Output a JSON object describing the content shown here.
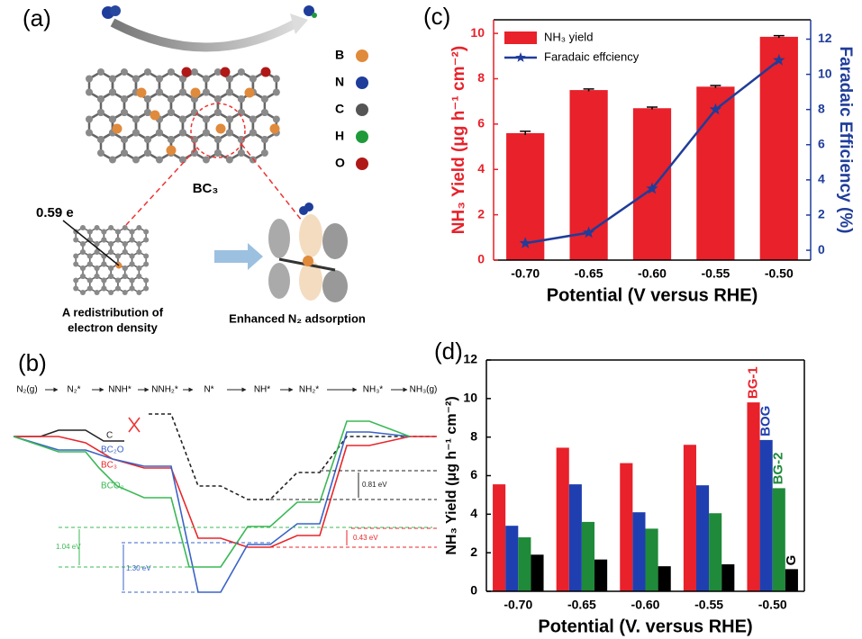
{
  "panel_a": {
    "label": "(a)",
    "elements": [
      "B",
      "N",
      "C",
      "H",
      "O"
    ],
    "element_colors": [
      "#e08a3c",
      "#1f3d9a",
      "#555555",
      "#1f9a3a",
      "#b01818"
    ],
    "structure": "BC₃",
    "charge": "0.59 e",
    "caption_left": [
      "A redistribution of",
      "electron density"
    ],
    "caption_right": "Enhanced N₂ adsorption"
  },
  "panel_b": {
    "label": "(b)",
    "steps": [
      "N₂(g)",
      "N₂*",
      "NNH*",
      "NNH₂*",
      "N*",
      "NH*",
      "NH₂*",
      "NH₃*",
      "NH₃(g)"
    ],
    "curves": [
      "C",
      "BC₂O",
      "BC₃",
      "BCO₂"
    ],
    "curve_colors": [
      "#222222",
      "#3a63c8",
      "#e8262a",
      "#3ab855"
    ],
    "gaps": [
      "0.81 eV",
      "0.43 eV",
      "1.04 eV",
      "1.30 eV"
    ]
  },
  "chart_data": [
    {
      "type": "bar",
      "panel_label": "(c)",
      "categories": [
        "-0.70",
        "-0.65",
        "-0.60",
        "-0.55",
        "-0.50"
      ],
      "xlabel": "Potential (V versus RHE)",
      "ylabel": "NH₃ Yield (μg h⁻¹ cm⁻²)",
      "y2label": "Faradaic Efficiency (%)",
      "ylim": [
        0,
        10.6
      ],
      "yticks": [
        0,
        2,
        4,
        6,
        8,
        10
      ],
      "y2lim": [
        -0.56,
        13.1
      ],
      "y2ticks": [
        0,
        2,
        4,
        6,
        8,
        10,
        12
      ],
      "ycolor": "#e8212a",
      "y2color": "#1f3d9a",
      "legend": "upper left",
      "series": [
        {
          "name": "NH₃ yield",
          "color": "#e8212a",
          "values": [
            5.6,
            7.5,
            6.7,
            7.65,
            9.85
          ],
          "errors": [
            0.08,
            0.05,
            0.05,
            0.05,
            0.05
          ]
        },
        {
          "name": "Faradaic effciency",
          "color": "#1f3d9a",
          "type": "line",
          "axis": "y2",
          "values": [
            0.4,
            1.0,
            3.5,
            8.0,
            10.8
          ]
        }
      ]
    },
    {
      "type": "bar",
      "panel_label": "(d)",
      "categories": [
        "-0.70",
        "-0.65",
        "-0.60",
        "-0.55",
        "-0.50"
      ],
      "xlabel": "Potential (V. versus RHE)",
      "ylabel": "NH₃ Yield (μg h⁻¹ cm⁻²)",
      "ylim": [
        0,
        12
      ],
      "yticks": [
        0,
        2,
        4,
        6,
        8,
        10,
        12
      ],
      "ycolor": "#000000",
      "legend": "bar labels",
      "series": [
        {
          "name": "BG-1",
          "color": "#e8212a",
          "values": [
            5.55,
            7.45,
            6.65,
            7.6,
            9.8
          ]
        },
        {
          "name": "BOG",
          "color": "#1f3fb0",
          "values": [
            3.4,
            5.55,
            4.1,
            5.5,
            7.85
          ]
        },
        {
          "name": "BG-2",
          "color": "#1f8a3a",
          "values": [
            2.8,
            3.6,
            3.25,
            4.05,
            5.35
          ]
        },
        {
          "name": "G",
          "color": "#000000",
          "values": [
            1.9,
            1.65,
            1.3,
            1.4,
            1.15
          ]
        }
      ]
    }
  ]
}
